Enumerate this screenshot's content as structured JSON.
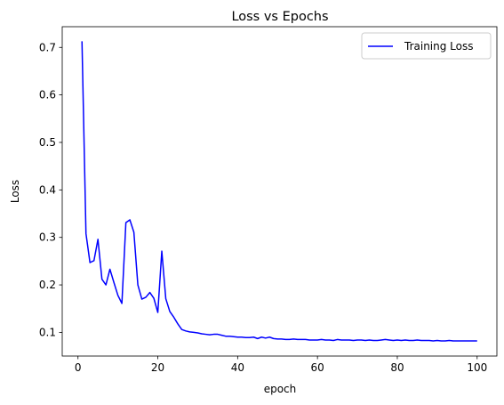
{
  "chart_data": {
    "type": "line",
    "title": "Loss vs Epochs",
    "xlabel": "epoch",
    "ylabel": "Loss",
    "xlim": [
      -3.95,
      104.95
    ],
    "ylim": [
      0.0502,
      0.7436
    ],
    "xticks": [
      0,
      20,
      40,
      60,
      80,
      100
    ],
    "yticks": [
      0.1,
      0.2,
      0.3,
      0.4,
      0.5,
      0.6,
      0.7
    ],
    "grid": false,
    "legend_position": "top-right",
    "series": [
      {
        "name": "Training Loss",
        "color": "#0000ff",
        "x": [
          1,
          2,
          3,
          4,
          5,
          6,
          7,
          8,
          9,
          10,
          11,
          12,
          13,
          14,
          15,
          16,
          17,
          18,
          19,
          20,
          21,
          22,
          23,
          24,
          25,
          26,
          27,
          28,
          29,
          30,
          31,
          32,
          33,
          34,
          35,
          36,
          37,
          38,
          39,
          40,
          41,
          42,
          43,
          44,
          45,
          46,
          47,
          48,
          49,
          50,
          51,
          52,
          53,
          54,
          55,
          56,
          57,
          58,
          59,
          60,
          61,
          62,
          63,
          64,
          65,
          66,
          67,
          68,
          69,
          70,
          71,
          72,
          73,
          74,
          75,
          76,
          77,
          78,
          79,
          80,
          81,
          82,
          83,
          84,
          85,
          86,
          87,
          88,
          89,
          90,
          91,
          92,
          93,
          94,
          95,
          96,
          97,
          98,
          99,
          100
        ],
        "y": [
          0.713,
          0.308,
          0.247,
          0.251,
          0.296,
          0.212,
          0.2,
          0.233,
          0.205,
          0.178,
          0.161,
          0.331,
          0.337,
          0.311,
          0.2,
          0.17,
          0.174,
          0.184,
          0.172,
          0.142,
          0.271,
          0.171,
          0.144,
          0.132,
          0.118,
          0.106,
          0.103,
          0.101,
          0.1,
          0.099,
          0.097,
          0.096,
          0.095,
          0.096,
          0.096,
          0.094,
          0.092,
          0.092,
          0.091,
          0.09,
          0.09,
          0.089,
          0.089,
          0.09,
          0.087,
          0.09,
          0.088,
          0.09,
          0.087,
          0.086,
          0.086,
          0.085,
          0.085,
          0.086,
          0.085,
          0.085,
          0.085,
          0.084,
          0.084,
          0.084,
          0.085,
          0.084,
          0.084,
          0.083,
          0.085,
          0.084,
          0.084,
          0.084,
          0.083,
          0.084,
          0.084,
          0.083,
          0.084,
          0.083,
          0.083,
          0.084,
          0.085,
          0.084,
          0.083,
          0.084,
          0.083,
          0.084,
          0.083,
          0.083,
          0.084,
          0.083,
          0.083,
          0.083,
          0.082,
          0.083,
          0.082,
          0.082,
          0.083,
          0.082,
          0.082,
          0.082,
          0.082,
          0.082,
          0.082,
          0.082
        ]
      }
    ]
  }
}
